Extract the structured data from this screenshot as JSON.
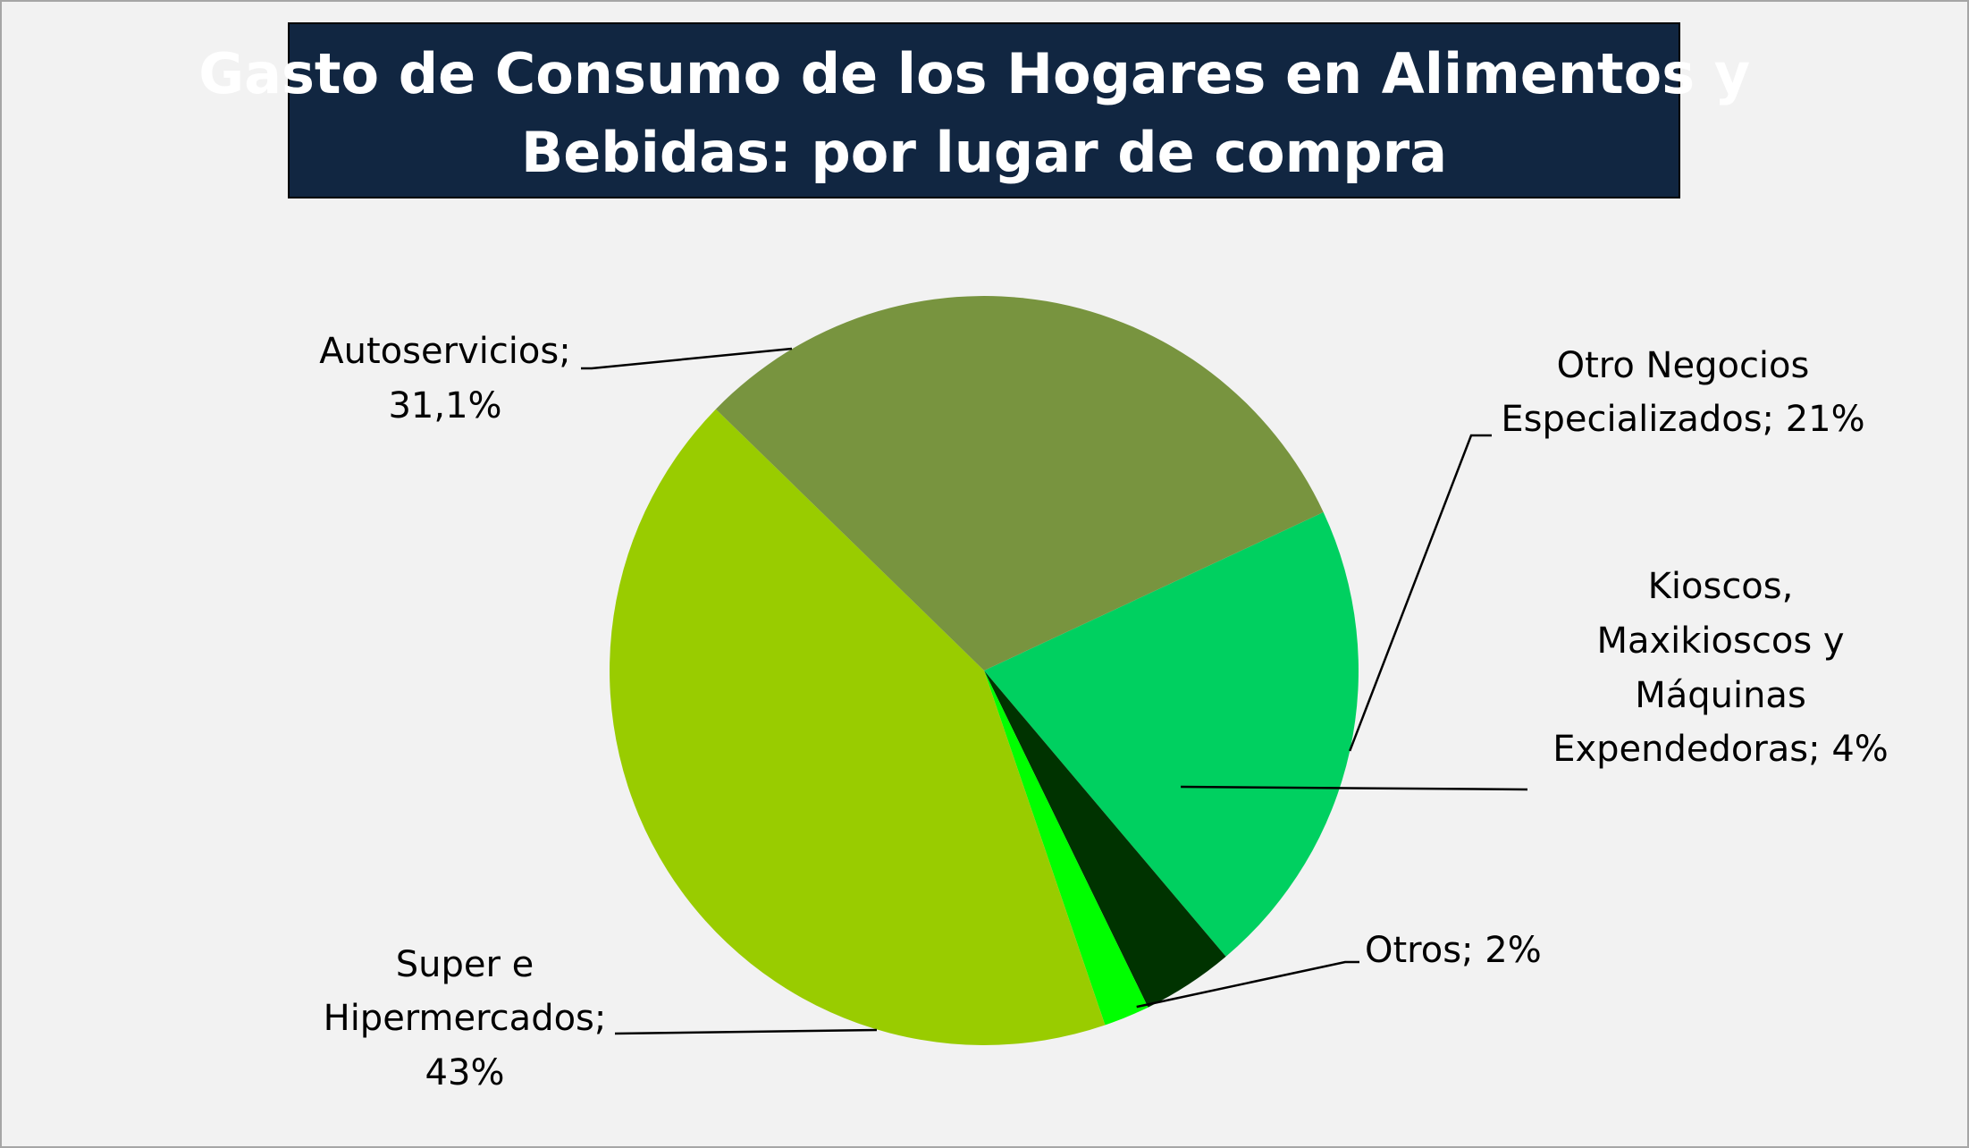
{
  "chart_data": {
    "type": "pie",
    "title": "Gasto de Consumo de los Hogares en Alimentos y Bebidas: por lugar de compra",
    "slices": [
      {
        "name": "Otro Negocios Especializados",
        "value": 21,
        "label": "Otro Negocios Especializados; 21%",
        "color": "#00d060"
      },
      {
        "name": "Kioscos, Maxikioscos y Máquinas Expendedoras",
        "value": 4,
        "label": "Kioscos, Maxikioscos y Máquinas Expendedoras; 4%",
        "color": "#003300"
      },
      {
        "name": "Otros",
        "value": 2,
        "label": "Otros; 2%",
        "color": "#00ff00"
      },
      {
        "name": "Super e Hipermercados",
        "value": 43,
        "label": "Super e Hipermercados; 43%",
        "color": "#99cc00"
      },
      {
        "name": "Autoservicios",
        "value": 31.1,
        "label": "Autoservicios; 31,1%",
        "color": "#78943f"
      }
    ],
    "title_background": "#112641",
    "legend": "none"
  }
}
